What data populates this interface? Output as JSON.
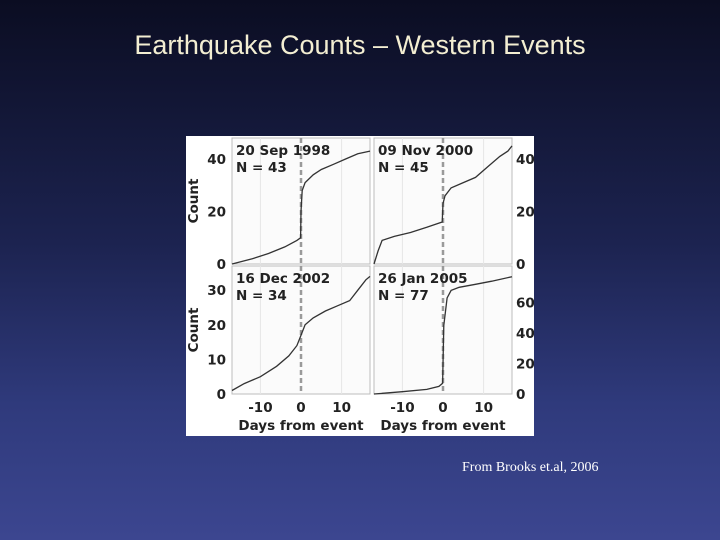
{
  "slide": {
    "title": "Earthquake Counts – Western Events",
    "credit": "From Brooks et.al, 2006"
  },
  "colors": {
    "curve": "#333333",
    "event_marker": "#9a9a9a",
    "grid": "#e6e6e6",
    "panel_frame": "#bdbdbd"
  },
  "chart_data": [
    {
      "type": "line",
      "title": "20 Sep 1998",
      "subtitle": "N = 43",
      "position": "top-left",
      "xlabel": "",
      "ylabel": "Count",
      "xlim": [
        -17,
        17
      ],
      "ylim": [
        0,
        48
      ],
      "yticks": [
        0,
        20,
        40
      ],
      "yaxis_side": "left",
      "event_line_x": 0,
      "series": [
        {
          "x": [
            -17,
            -12,
            -8,
            -4,
            -1,
            -0.1,
            0,
            0.3,
            1,
            3,
            5,
            8,
            11,
            14,
            17
          ],
          "y": [
            0,
            2,
            4,
            6.5,
            9,
            10,
            20,
            28,
            31,
            34,
            36,
            38,
            40,
            42,
            43
          ]
        }
      ]
    },
    {
      "type": "line",
      "title": "09 Nov 2000",
      "subtitle": "N = 45",
      "position": "top-right",
      "xlabel": "",
      "ylabel": "",
      "xlim": [
        -17,
        17
      ],
      "ylim": [
        0,
        48
      ],
      "yticks": [
        0,
        20,
        40
      ],
      "yaxis_side": "right",
      "event_line_x": 0,
      "series": [
        {
          "x": [
            -17,
            -16,
            -15,
            -12,
            -8,
            -4,
            -0.2,
            0,
            0.5,
            2,
            5,
            8,
            11,
            14,
            16,
            17
          ],
          "y": [
            0,
            5,
            9,
            10.5,
            12,
            14,
            16,
            23,
            26,
            29,
            31,
            33,
            37,
            41,
            43,
            45
          ]
        }
      ]
    },
    {
      "type": "line",
      "title": "16 Dec 2002",
      "subtitle": "N = 34",
      "position": "bottom-left",
      "xlabel": "Days from event",
      "ylabel": "Count",
      "xlim": [
        -17,
        17
      ],
      "ylim": [
        0,
        37
      ],
      "yticks": [
        0,
        10,
        20,
        30
      ],
      "xticks": [
        -10,
        0,
        10
      ],
      "yaxis_side": "left",
      "event_line_x": 0,
      "series": [
        {
          "x": [
            -17,
            -14,
            -10,
            -6,
            -3,
            -1,
            0,
            1,
            3,
            6,
            9,
            12,
            14,
            16,
            17
          ],
          "y": [
            1,
            3,
            5,
            8,
            11,
            14,
            17,
            20,
            22,
            24,
            25.5,
            27,
            30,
            33,
            34
          ]
        }
      ]
    },
    {
      "type": "line",
      "title": "26 Jan 2005",
      "subtitle": "N = 77",
      "position": "bottom-right",
      "xlabel": "Days from event",
      "ylabel": "",
      "xlim": [
        -17,
        17
      ],
      "ylim": [
        0,
        84
      ],
      "yticks": [
        0,
        20,
        40,
        60
      ],
      "xticks": [
        -10,
        0,
        10
      ],
      "yaxis_side": "right",
      "event_line_x": 0,
      "series": [
        {
          "x": [
            -17,
            -10,
            -4,
            -1,
            -0.1,
            0.2,
            1,
            2,
            4,
            8,
            12,
            17
          ],
          "y": [
            0,
            1.5,
            3,
            5,
            7,
            45,
            63,
            68,
            70,
            72,
            74,
            77
          ]
        }
      ]
    }
  ]
}
